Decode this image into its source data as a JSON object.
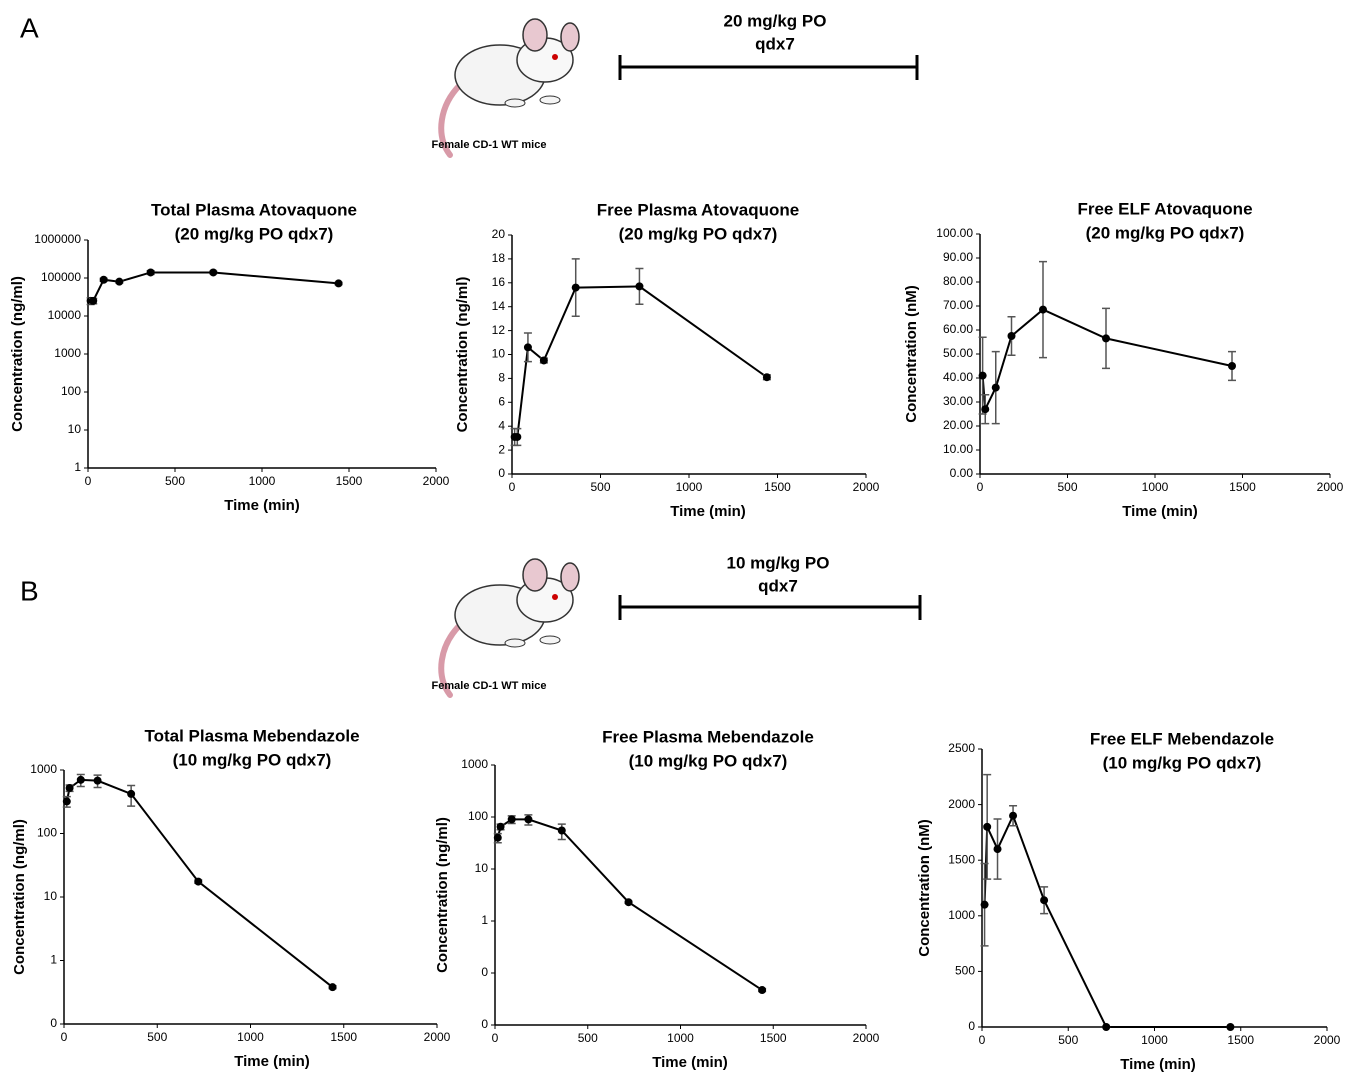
{
  "panels": [
    {
      "label": "A",
      "caption": "Female CD-1 WT mice",
      "dose": "20 mg/kg PO",
      "schedule": "qdx7"
    },
    {
      "label": "B",
      "caption": "Female CD-1 WT mice",
      "dose": "10 mg/kg PO",
      "schedule": "qdx7"
    }
  ],
  "chart_data": [
    {
      "type": "line",
      "title": "Total Plasma Atovaquone",
      "subtitle": "(20 mg/kg PO qdx7)",
      "x_label": "Time (min)",
      "y_label": "Concentration (ng/ml)",
      "color": "#000000",
      "x": [
        15,
        30,
        90,
        180,
        360,
        720,
        1440
      ],
      "values": [
        25000,
        25000,
        90000,
        80000,
        140000,
        140000,
        72000
      ],
      "errors": [
        5000,
        4000,
        8000,
        6000,
        15000,
        10000,
        5000
      ],
      "xlim": [
        0,
        2000
      ],
      "xticks": [
        0,
        500,
        1000,
        1500,
        2000
      ],
      "ylim": [
        1,
        1000000
      ],
      "yticks": [
        1,
        10,
        100,
        1000,
        10000,
        100000,
        1000000
      ],
      "y_scale": "log"
    },
    {
      "type": "line",
      "title": "Free Plasma Atovaquone",
      "subtitle": "(20 mg/kg PO qdx7)",
      "x_label": "Time (min)",
      "y_label": "Concentration (ng/ml)",
      "color": "#000000",
      "x": [
        15,
        30,
        90,
        180,
        360,
        720,
        1440
      ],
      "values": [
        3.1,
        3.1,
        10.6,
        9.5,
        15.6,
        15.7,
        8.1
      ],
      "errors": [
        0.7,
        0.7,
        1.2,
        0.2,
        2.4,
        1.5,
        0.2
      ],
      "xlim": [
        0,
        2000
      ],
      "xticks": [
        0,
        500,
        1000,
        1500,
        2000
      ],
      "ylim": [
        0,
        20
      ],
      "yticks": [
        0,
        2,
        4,
        6,
        8,
        10,
        12,
        14,
        16,
        18,
        20
      ],
      "y_scale": "linear"
    },
    {
      "type": "line",
      "title": "Free ELF Atovaquone",
      "subtitle": "(20 mg/kg PO qdx7)",
      "x_label": "Time (min)",
      "y_label": "Concentration (nM)",
      "color": "#000000",
      "x": [
        15,
        30,
        90,
        180,
        360,
        720,
        1440
      ],
      "values": [
        41,
        27,
        36,
        57.5,
        68.5,
        56.5,
        45
      ],
      "errors": [
        16,
        6,
        15,
        8,
        20,
        12.5,
        6
      ],
      "xlim": [
        0,
        2000
      ],
      "xticks": [
        0,
        500,
        1000,
        1500,
        2000
      ],
      "ylim": [
        0,
        100
      ],
      "yticks": [
        {
          "value": 0,
          "label": "0.00"
        },
        {
          "value": 10,
          "label": "10.00"
        },
        {
          "value": 20,
          "label": "20.00"
        },
        {
          "value": 30,
          "label": "30.00"
        },
        {
          "value": 40,
          "label": "40.00"
        },
        {
          "value": 50,
          "label": "50.00"
        },
        {
          "value": 60,
          "label": "60.00"
        },
        {
          "value": 70,
          "label": "70.00"
        },
        {
          "value": 80,
          "label": "80.00"
        },
        {
          "value": 90,
          "label": "90.00"
        },
        {
          "value": 100,
          "label": "100.00"
        }
      ],
      "y_scale": "linear"
    },
    {
      "type": "line",
      "title": "Total Plasma Mebendazole",
      "subtitle": "(10 mg/kg PO qdx7)",
      "x_label": "Time (min)",
      "y_label": "Concentration (ng/ml)",
      "color": "#000000",
      "x": [
        15,
        30,
        90,
        180,
        360,
        720,
        1440
      ],
      "values": [
        320,
        520,
        700,
        680,
        420,
        17.5,
        0.38
      ],
      "errors": [
        60,
        60,
        150,
        150,
        150,
        1,
        0.02
      ],
      "xlim": [
        0,
        2000
      ],
      "xticks": [
        0,
        500,
        1000,
        1500,
        2000
      ],
      "ylim": [
        0.1,
        1000
      ],
      "yticks": [
        {
          "value": 0.1,
          "label": "0"
        },
        1,
        10,
        100,
        1000
      ],
      "y_scale": "log"
    },
    {
      "type": "line",
      "title": "Free Plasma Mebendazole",
      "subtitle": "(10 mg/kg PO qdx7)",
      "x_label": "Time (min)",
      "y_label": "Concentration (ng/ml)",
      "color": "#000000",
      "x": [
        15,
        30,
        90,
        180,
        360,
        720,
        1440
      ],
      "values": [
        40,
        65,
        90,
        90,
        55,
        2.3,
        0.047
      ],
      "errors": [
        8,
        8,
        15,
        20,
        18,
        0.1,
        0.003
      ],
      "xlim": [
        0,
        2000
      ],
      "xticks": [
        0,
        500,
        1000,
        1500,
        2000
      ],
      "ylim": [
        0.01,
        1000
      ],
      "yticks": [
        {
          "value": 0.01,
          "label": "0"
        },
        {
          "value": 0.1,
          "label": "0"
        },
        1,
        10,
        100,
        1000
      ],
      "y_scale": "log"
    },
    {
      "type": "line",
      "title": "Free ELF Mebendazole",
      "subtitle": "(10 mg/kg PO qdx7)",
      "x_label": "Time (min)",
      "y_label": "Concentration (nM)",
      "color": "#000000",
      "x": [
        15,
        30,
        90,
        180,
        360,
        720,
        1440
      ],
      "values": [
        1100,
        1800,
        1600,
        1900,
        1140,
        0,
        0
      ],
      "errors": [
        370,
        470,
        270,
        90,
        120,
        0,
        0
      ],
      "xlim": [
        0,
        2000
      ],
      "xticks": [
        0,
        500,
        1000,
        1500,
        2000
      ],
      "ylim": [
        0,
        2500
      ],
      "yticks": [
        0,
        500,
        1000,
        1500,
        2000,
        2500
      ],
      "y_scale": "linear"
    }
  ]
}
